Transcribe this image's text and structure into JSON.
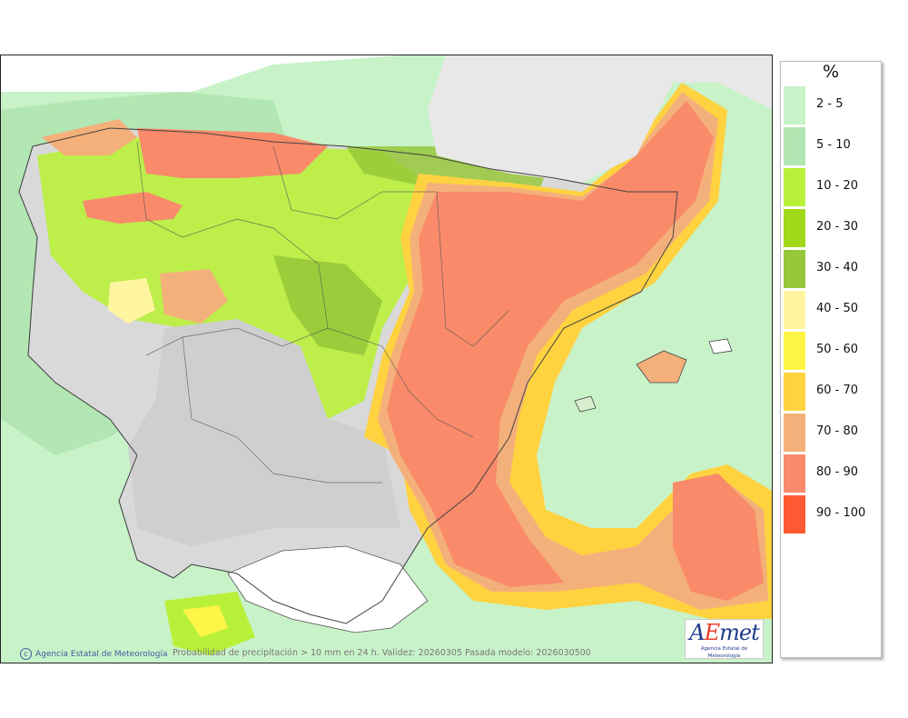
{
  "legend": {
    "unit": "%",
    "items": [
      {
        "label": "2 - 5",
        "color": "#c8f2c8"
      },
      {
        "label": "5 - 10",
        "color": "#b2e6b2"
      },
      {
        "label": "10 - 20",
        "color": "#b9f03a"
      },
      {
        "label": "20 - 30",
        "color": "#a2d81a"
      },
      {
        "label": "30 - 40",
        "color": "#96c83a"
      },
      {
        "label": "40 - 50",
        "color": "#fff5a0"
      },
      {
        "label": "50 - 60",
        "color": "#fff546"
      },
      {
        "label": "60 - 70",
        "color": "#ffd240"
      },
      {
        "label": "70 - 80",
        "color": "#f4b07a"
      },
      {
        "label": "80 - 90",
        "color": "#f98a6a"
      },
      {
        "label": "90 - 100",
        "color": "#ff5a32"
      }
    ]
  },
  "credit": "Agencia Estatal de Meteorología",
  "caption": "Probabilidad de precipitación > 10 mm en 24 h. Validez: 20260305 Pasada modelo: 2026030500",
  "logo": {
    "mark_a": "A",
    "mark_e": "E",
    "mark_rest": "met",
    "subtitle": "Agencia Estatal de Meteorología"
  }
}
